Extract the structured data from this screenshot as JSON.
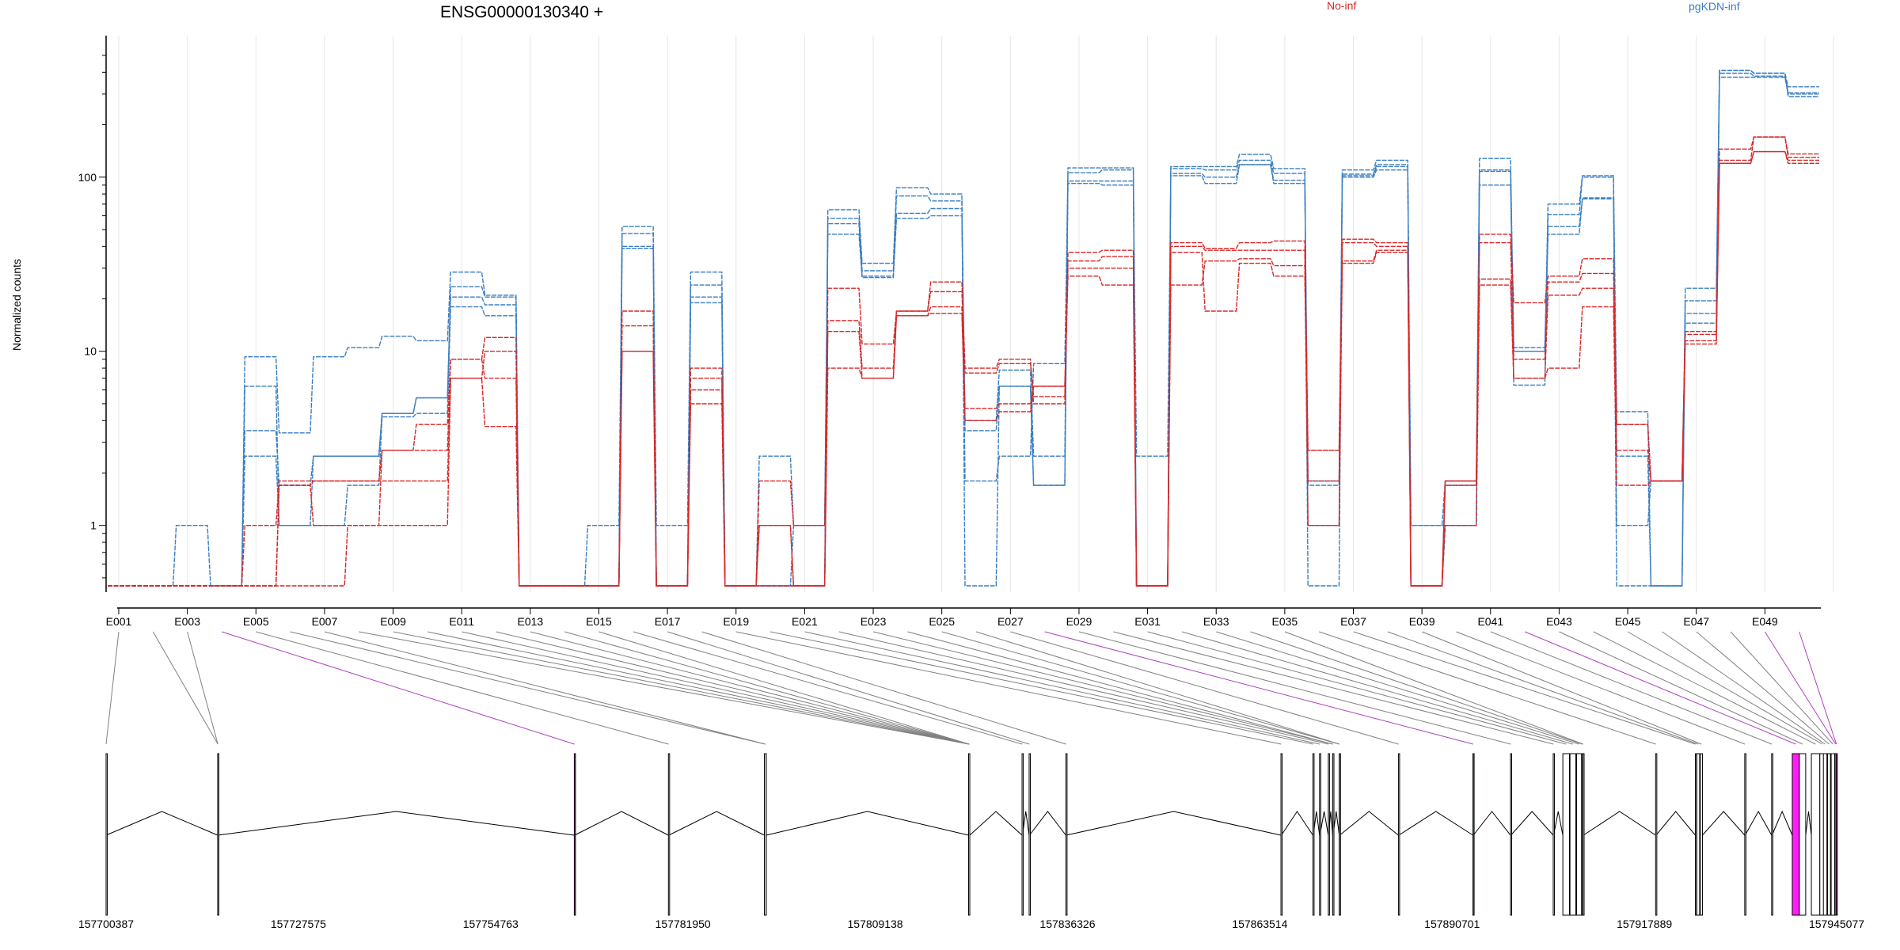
{
  "title": "ENSG00000130340 +",
  "legend": [
    {
      "label": "No-inf",
      "color": "#d62728"
    },
    {
      "label": "pgKDN-inf",
      "color": "#3a7ebf"
    }
  ],
  "colors": {
    "no_inf": "#d62728",
    "pgkdn_inf": "#3a7ebf",
    "highlight_exon": "#ff1ff5",
    "highlight_connector": "#b040c0",
    "connector": "#808080",
    "grid": "#e6e6e6"
  },
  "chart_data": {
    "type": "line",
    "ylabel": "Normalized counts",
    "yscale": "log",
    "ylim": [
      0.45,
      500
    ],
    "yticks": [
      1,
      10,
      100
    ],
    "ytick_labels": [
      "1",
      "10",
      "100"
    ],
    "exon_tick_labels": [
      "E001",
      "E003",
      "E005",
      "E007",
      "E009",
      "E011",
      "E013",
      "E015",
      "E017",
      "E019",
      "E021",
      "E023",
      "E025",
      "E027",
      "E029",
      "E031",
      "E033",
      "E035",
      "E037",
      "E039",
      "E041",
      "E043",
      "E045",
      "E047",
      "E049"
    ],
    "exons": [
      "E001",
      "E002",
      "E003",
      "E004",
      "E005",
      "E006",
      "E007",
      "E008",
      "E009",
      "E010",
      "E011",
      "E012",
      "E013",
      "E014",
      "E015",
      "E016",
      "E017",
      "E018",
      "E019",
      "E020",
      "E021",
      "E022",
      "E023",
      "E024",
      "E025",
      "E026",
      "E027",
      "E028",
      "E029",
      "E030",
      "E031",
      "E032",
      "E033",
      "E034",
      "E035",
      "E036",
      "E037",
      "E038",
      "E039",
      "E040",
      "E041",
      "E042",
      "E043",
      "E044",
      "E045",
      "E046",
      "E047",
      "E048",
      "E049",
      "E050"
    ],
    "series": [
      {
        "group": "pgKDN-inf",
        "values": [
          0.45,
          0.45,
          1.0,
          0.45,
          9.3,
          3.4,
          9.3,
          10.5,
          12.2,
          11.5,
          28.5,
          21.0,
          0.45,
          0.45,
          1.0,
          52.0,
          1.0,
          28.5,
          0.45,
          2.5,
          1.0,
          65.0,
          32.0,
          87.0,
          80.0,
          0.45,
          6.3,
          1.7,
          113.0,
          113.0,
          0.45,
          115.0,
          115.0,
          135.0,
          112.0,
          0.45,
          110.0,
          125.0,
          0.45,
          1.7,
          128.0,
          10.0,
          70.0,
          102.0,
          0.45,
          0.45,
          23.0,
          410.0,
          395.0,
          330.0
        ]
      },
      {
        "group": "pgKDN-inf",
        "values": [
          0.45,
          0.45,
          0.45,
          0.45,
          6.3,
          1.0,
          2.5,
          2.5,
          4.4,
          5.4,
          23.5,
          20.5,
          0.45,
          0.45,
          0.45,
          47.5,
          0.45,
          24.0,
          0.45,
          0.45,
          1.0,
          58.0,
          29.0,
          78.0,
          73.0,
          1.8,
          2.5,
          8.5,
          106.0,
          110.0,
          0.45,
          112.0,
          110.0,
          125.0,
          105.0,
          1.0,
          104.0,
          118.0,
          1.0,
          1.0,
          110.0,
          6.4,
          61.0,
          100.0,
          4.5,
          0.45,
          19.5,
          395.0,
          380.0,
          305.0
        ]
      },
      {
        "group": "pgKDN-inf",
        "values": [
          0.45,
          0.45,
          0.45,
          0.45,
          3.5,
          1.7,
          2.5,
          2.5,
          4.4,
          5.4,
          20.5,
          18.5,
          0.45,
          0.45,
          0.45,
          40.0,
          0.45,
          20.5,
          0.45,
          0.45,
          0.45,
          54.0,
          27.0,
          62.0,
          66.0,
          3.5,
          6.3,
          1.7,
          95.0,
          95.0,
          0.45,
          105.0,
          100.0,
          118.0,
          96.0,
          1.7,
          102.0,
          115.0,
          0.45,
          1.0,
          108.0,
          10.0,
          52.0,
          75.0,
          2.5,
          0.45,
          16.5,
          375.0,
          375.0,
          300.0
        ]
      },
      {
        "group": "pgKDN-inf",
        "values": [
          0.45,
          0.45,
          0.45,
          0.45,
          2.5,
          1.0,
          1.0,
          1.7,
          4.2,
          4.4,
          18.0,
          16.0,
          0.45,
          0.45,
          0.45,
          39.0,
          0.45,
          19.0,
          0.45,
          0.45,
          0.45,
          47.0,
          26.5,
          58.0,
          60.0,
          4.0,
          7.8,
          2.5,
          92.0,
          90.0,
          2.5,
          102.0,
          92.0,
          118.0,
          92.0,
          1.8,
          100.0,
          110.0,
          1.0,
          1.8,
          90.0,
          10.5,
          47.0,
          76.0,
          1.0,
          1.8,
          14.5,
          410.0,
          395.0,
          290.0
        ]
      },
      {
        "group": "No-inf",
        "values": [
          0.45,
          0.45,
          0.45,
          0.45,
          1.0,
          1.8,
          1.8,
          1.8,
          2.7,
          2.7,
          9.0,
          12.0,
          0.45,
          0.45,
          0.45,
          17.0,
          0.45,
          8.0,
          0.45,
          1.8,
          1.0,
          23.0,
          11.0,
          17.0,
          25.0,
          8.0,
          9.0,
          5.0,
          37.0,
          38.0,
          0.45,
          42.0,
          39.0,
          42.0,
          43.0,
          2.7,
          44.0,
          42.0,
          0.45,
          1.8,
          47.0,
          19.0,
          27.0,
          34.0,
          3.8,
          1.8,
          13.0,
          145.0,
          170.0,
          136.0
        ]
      },
      {
        "group": "No-inf",
        "values": [
          0.45,
          0.45,
          0.45,
          0.45,
          0.45,
          1.7,
          1.8,
          1.8,
          1.8,
          1.8,
          7.0,
          10.0,
          0.45,
          0.45,
          0.45,
          14.0,
          0.45,
          7.0,
          0.45,
          1.0,
          0.45,
          15.0,
          8.0,
          17.0,
          22.0,
          7.5,
          8.5,
          5.5,
          33.0,
          35.0,
          0.45,
          40.0,
          38.0,
          38.0,
          38.0,
          1.8,
          42.0,
          40.0,
          0.45,
          1.8,
          42.0,
          9.0,
          25.0,
          28.0,
          3.8,
          1.8,
          12.5,
          125.0,
          170.0,
          130.0
        ]
      },
      {
        "group": "No-inf",
        "values": [
          0.45,
          0.45,
          0.45,
          0.45,
          0.45,
          1.7,
          1.0,
          1.0,
          2.7,
          3.8,
          9.0,
          7.0,
          0.45,
          0.45,
          0.45,
          10.0,
          0.45,
          6.0,
          0.45,
          1.0,
          0.45,
          13.0,
          7.0,
          16.0,
          18.0,
          4.7,
          5.0,
          6.3,
          30.0,
          30.0,
          0.45,
          24.0,
          33.0,
          34.0,
          31.0,
          1.0,
          33.0,
          38.0,
          0.45,
          1.7,
          26.0,
          7.0,
          21.0,
          23.0,
          2.7,
          1.8,
          11.5,
          120.0,
          140.0,
          125.0
        ]
      },
      {
        "group": "No-inf",
        "values": [
          0.45,
          0.45,
          0.45,
          0.45,
          0.45,
          0.45,
          0.45,
          1.0,
          1.0,
          1.0,
          7.0,
          3.7,
          0.45,
          0.45,
          0.45,
          10.0,
          0.45,
          5.0,
          0.45,
          0.45,
          0.45,
          8.0,
          7.0,
          16.0,
          16.5,
          4.0,
          4.5,
          6.3,
          27.0,
          24.0,
          0.45,
          37.0,
          17.0,
          32.0,
          27.0,
          2.7,
          32.0,
          37.0,
          0.45,
          1.0,
          24.0,
          7.0,
          8.0,
          18.0,
          1.7,
          1.8,
          11.0,
          120.0,
          140.0,
          120.0
        ]
      }
    ],
    "genomic_tick_labels": [
      "157700387",
      "157727575",
      "157754763",
      "157781950",
      "157809138",
      "157836326",
      "157863514",
      "157890701",
      "157917889",
      "157945077"
    ],
    "genomic_range": [
      157700387,
      157945077
    ],
    "exon_positions": [
      {
        "start": 157700387,
        "end": 157700387
      },
      {
        "start": 157716165,
        "end": 157716220
      },
      {
        "start": 157716165,
        "end": 157716220
      },
      {
        "start": 157766585,
        "end": 157766640
      },
      {
        "start": 157779895,
        "end": 157779950
      },
      {
        "start": 157793470,
        "end": 157793720
      },
      {
        "start": 157793470,
        "end": 157793720
      },
      {
        "start": 157822340,
        "end": 157822500
      },
      {
        "start": 157822340,
        "end": 157822500
      },
      {
        "start": 157822340,
        "end": 157822500
      },
      {
        "start": 157822340,
        "end": 157822500
      },
      {
        "start": 157822340,
        "end": 157822500
      },
      {
        "start": 157822340,
        "end": 157822500
      },
      {
        "start": 157822340,
        "end": 157822500
      },
      {
        "start": 157822340,
        "end": 157822500
      },
      {
        "start": 157829900,
        "end": 157829950
      },
      {
        "start": 157830900,
        "end": 157830950
      },
      {
        "start": 157836095,
        "end": 157836150
      },
      {
        "start": 157866505,
        "end": 157866560
      },
      {
        "start": 157871020,
        "end": 157871075
      },
      {
        "start": 157871960,
        "end": 157872015
      },
      {
        "start": 157873200,
        "end": 157873255
      },
      {
        "start": 157873820,
        "end": 157873875
      },
      {
        "start": 157873820,
        "end": 157873875
      },
      {
        "start": 157874750,
        "end": 157874805
      },
      {
        "start": 157874750,
        "end": 157874805
      },
      {
        "start": 157883110,
        "end": 157883165
      },
      {
        "start": 157893650,
        "end": 157893705
      },
      {
        "start": 157898960,
        "end": 157899015
      },
      {
        "start": 157905000,
        "end": 157905055
      },
      {
        "start": 157906360,
        "end": 157907300
      },
      {
        "start": 157907370,
        "end": 157908200
      },
      {
        "start": 157908300,
        "end": 157909000
      },
      {
        "start": 157909050,
        "end": 157909200
      },
      {
        "start": 157909200,
        "end": 157909280
      },
      {
        "start": 157919480,
        "end": 157919535
      },
      {
        "start": 157925100,
        "end": 157925155
      },
      {
        "start": 157925300,
        "end": 157925700
      },
      {
        "start": 157925800,
        "end": 157926100
      },
      {
        "start": 157932080,
        "end": 157932135
      },
      {
        "start": 157935880,
        "end": 157935935
      },
      {
        "start": 157938800,
        "end": 157939800
      },
      {
        "start": 157939800,
        "end": 157940700
      },
      {
        "start": 157941500,
        "end": 157942700
      },
      {
        "start": 157942700,
        "end": 157943400
      },
      {
        "start": 157943200,
        "end": 157943700
      },
      {
        "start": 157943800,
        "end": 157944200
      },
      {
        "start": 157944300,
        "end": 157944800
      },
      {
        "start": 157944800,
        "end": 157945077
      },
      {
        "start": 157945000,
        "end": 157945077
      }
    ],
    "highlight_exons": [
      "E004",
      "E028",
      "E042",
      "E049",
      "E050"
    ]
  }
}
